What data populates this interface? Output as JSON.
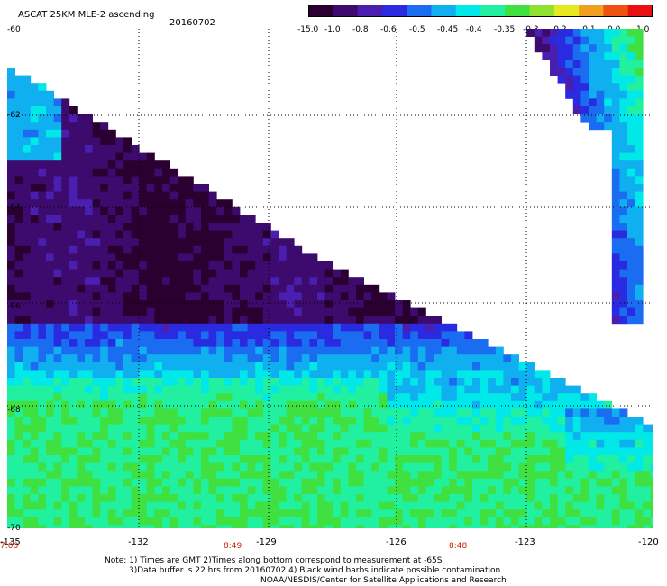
{
  "header": {
    "title": "ASCAT 25KM MLE-2 ascending",
    "date": "20160702"
  },
  "colorbar": {
    "labels": [
      "-15.0",
      "-1.0",
      "-0.8",
      "-0.6",
      "-0.5",
      "-0.45",
      "-0.4",
      "-0.35",
      "-0.3",
      "-0.2",
      "-0.1",
      "0.0",
      "1.0"
    ],
    "colors": [
      "#2a0030",
      "#3d0a6e",
      "#4a1fb0",
      "#2a2ae0",
      "#1a6cf0",
      "#10b0f0",
      "#00e8e8",
      "#20f0a0",
      "#40e040",
      "#90e030",
      "#e8e820",
      "#f0a020",
      "#f05010",
      "#e81010"
    ]
  },
  "map": {
    "lat_labels": [
      "-60",
      "-62",
      "-64",
      "-66",
      "-68",
      "-70"
    ],
    "lon_labels": [
      "-135",
      "-132",
      "-129",
      "-126",
      "-123",
      "-120"
    ],
    "time_labels": [
      "7:08",
      "8:49",
      "8:48"
    ]
  },
  "notes": {
    "line1": "Note: 1) Times are GMT 2)Times along bottom correspond to measurement at -65S",
    "line2": "3)Data buffer is 22 hrs from 20160702 4) Black wind barbs indicate possible contamination",
    "line3": "NOAA/NESDIS/Center for Satellite Applications and Research"
  }
}
